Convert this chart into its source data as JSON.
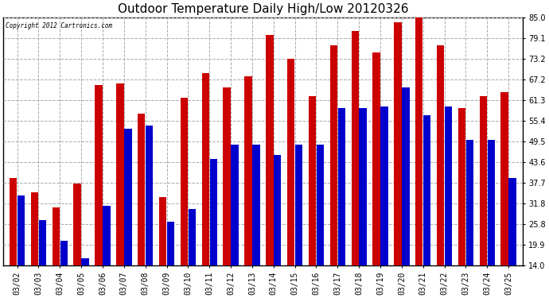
{
  "title": "Outdoor Temperature Daily High/Low 20120326",
  "copyright": "Copyright 2012 Cartronics.com",
  "background_color": "#ffffff",
  "plot_bg_color": "#ffffff",
  "bar_high_color": "#cc0000",
  "bar_low_color": "#0000cc",
  "dates": [
    "03/02",
    "03/03",
    "03/04",
    "03/05",
    "03/06",
    "03/07",
    "03/08",
    "03/09",
    "03/10",
    "03/11",
    "03/12",
    "03/13",
    "03/14",
    "03/15",
    "03/16",
    "03/17",
    "03/18",
    "03/19",
    "03/20",
    "03/21",
    "03/22",
    "03/23",
    "03/24",
    "03/25"
  ],
  "highs": [
    39.0,
    35.0,
    30.5,
    37.5,
    65.5,
    66.0,
    57.5,
    33.5,
    62.0,
    69.0,
    65.0,
    68.0,
    80.0,
    73.2,
    62.5,
    77.0,
    81.0,
    75.0,
    83.5,
    85.0,
    77.0,
    59.0,
    62.5,
    63.5
  ],
  "lows": [
    34.0,
    27.0,
    21.0,
    16.0,
    31.0,
    53.0,
    54.0,
    26.5,
    30.0,
    44.5,
    48.5,
    48.5,
    45.5,
    48.5,
    48.5,
    59.0,
    59.0,
    59.5,
    65.0,
    57.0,
    59.5,
    50.0,
    50.0,
    39.0
  ],
  "yticks": [
    14.0,
    19.9,
    25.8,
    31.8,
    37.7,
    43.6,
    49.5,
    55.4,
    61.3,
    67.2,
    73.2,
    79.1,
    85.0
  ],
  "ylim": [
    14.0,
    85.0
  ],
  "grid_color": "#aaaaaa",
  "title_fontsize": 11,
  "tick_fontsize": 7,
  "bar_width": 0.35,
  "bar_gap": 0.02
}
